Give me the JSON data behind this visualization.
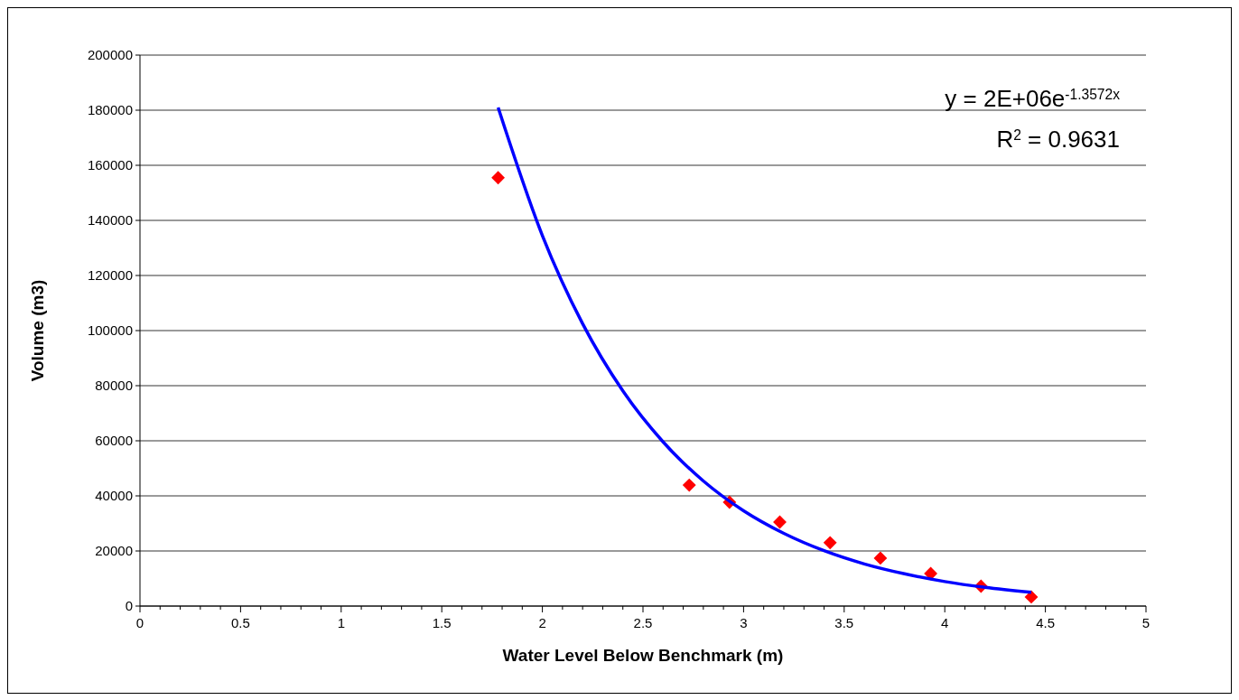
{
  "chart_data": {
    "type": "scatter",
    "xlabel": "Water Level Below Benchmark (m)",
    "ylabel": "Volume (m3)",
    "series": [
      {
        "color": "#ff0000",
        "marker": "diamond",
        "x": [
          1.78,
          2.73,
          2.93,
          3.18,
          3.43,
          3.68,
          3.93,
          4.18,
          4.43
        ],
        "values": [
          155500,
          43900,
          37700,
          30500,
          23000,
          17400,
          11800,
          7200,
          3300
        ]
      },
      {
        "type": "line",
        "color": "#0000ff",
        "marker": "none",
        "line_style": "solid",
        "x": [
          1.78,
          2.0,
          2.2,
          2.4,
          2.6,
          2.8,
          3.0,
          3.2,
          3.4,
          3.6,
          3.8,
          4.0,
          4.2,
          4.43
        ],
        "values": [
          181000,
          134500,
          102500,
          78100,
          59600,
          45400,
          34600,
          26400,
          20100,
          15300,
          11700,
          8900,
          6800,
          5000
        ]
      }
    ],
    "xlim": [
      0,
      5
    ],
    "xticks": [
      0,
      0.5,
      1,
      1.5,
      2,
      2.5,
      3,
      3.5,
      4,
      4.5,
      5
    ],
    "ylim": [
      0,
      200000
    ],
    "yticks": [
      0,
      20000,
      40000,
      60000,
      80000,
      100000,
      120000,
      140000,
      160000,
      180000,
      200000
    ],
    "grid": "y",
    "annotations": [
      "y = 2E+06e$^{-1.3572x}$",
      "R$^{2}$ = 0.9631"
    ]
  }
}
